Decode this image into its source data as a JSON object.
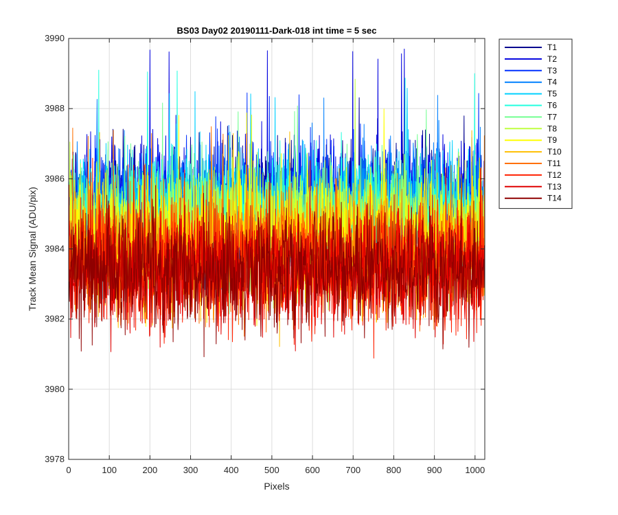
{
  "chart_data": {
    "type": "line",
    "title": "BS03 Day02 20190111-Dark-018 int time = 5 sec",
    "xlabel": "Pixels",
    "ylabel": "Track Mean Signal (ADU/pix)",
    "xlim": [
      0,
      1024
    ],
    "ylim": [
      3978,
      3990
    ],
    "xticks": [
      0,
      100,
      200,
      300,
      400,
      500,
      600,
      700,
      800,
      900,
      1000
    ],
    "yticks": [
      3978,
      3980,
      3982,
      3984,
      3986,
      3988,
      3990
    ],
    "grid": true,
    "legend_position": "outside-top-right",
    "x_sampling": "one value per pixel, pixels 1–1024 (values below are approximate envelopes per series)",
    "series": [
      {
        "name": "T1",
        "color": "#00008f",
        "mean": 3985.3,
        "spread": 1.7,
        "peak": 3988.6
      },
      {
        "name": "T2",
        "color": "#0000df",
        "mean": 3985.3,
        "spread": 1.7,
        "peak": 3989.7
      },
      {
        "name": "T3",
        "color": "#0030ff",
        "mean": 3985.2,
        "spread": 1.7,
        "peak": 3988.6
      },
      {
        "name": "T4",
        "color": "#0080ff",
        "mean": 3985.1,
        "spread": 1.7,
        "peak": 3988.5
      },
      {
        "name": "T5",
        "color": "#00d0ff",
        "mean": 3985.0,
        "spread": 1.7,
        "peak": 3988.6
      },
      {
        "name": "T6",
        "color": "#20ffdf",
        "mean": 3984.9,
        "spread": 1.7,
        "peak": 3989.1
      },
      {
        "name": "T7",
        "color": "#70ff8f",
        "mean": 3984.7,
        "spread": 1.7,
        "peak": 3988.2
      },
      {
        "name": "T8",
        "color": "#bfff40",
        "mean": 3984.5,
        "spread": 1.7,
        "peak": 3989.0
      },
      {
        "name": "T9",
        "color": "#ffff00",
        "mean": 3984.3,
        "spread": 1.7,
        "peak": 3988.0
      },
      {
        "name": "T10",
        "color": "#ffbf00",
        "mean": 3984.0,
        "spread": 1.7,
        "peak": 3987.4
      },
      {
        "name": "T11",
        "color": "#ff7000",
        "mean": 3983.8,
        "spread": 1.7,
        "peak": 3987.5
      },
      {
        "name": "T12",
        "color": "#ff2000",
        "mean": 3983.5,
        "spread": 1.7,
        "peak": 3986.6
      },
      {
        "name": "T13",
        "color": "#df0000",
        "mean": 3983.4,
        "spread": 1.6,
        "peak": 3986.4
      },
      {
        "name": "T14",
        "color": "#8f0000",
        "mean": 3983.4,
        "spread": 1.6,
        "peak": 3986.2
      }
    ]
  }
}
